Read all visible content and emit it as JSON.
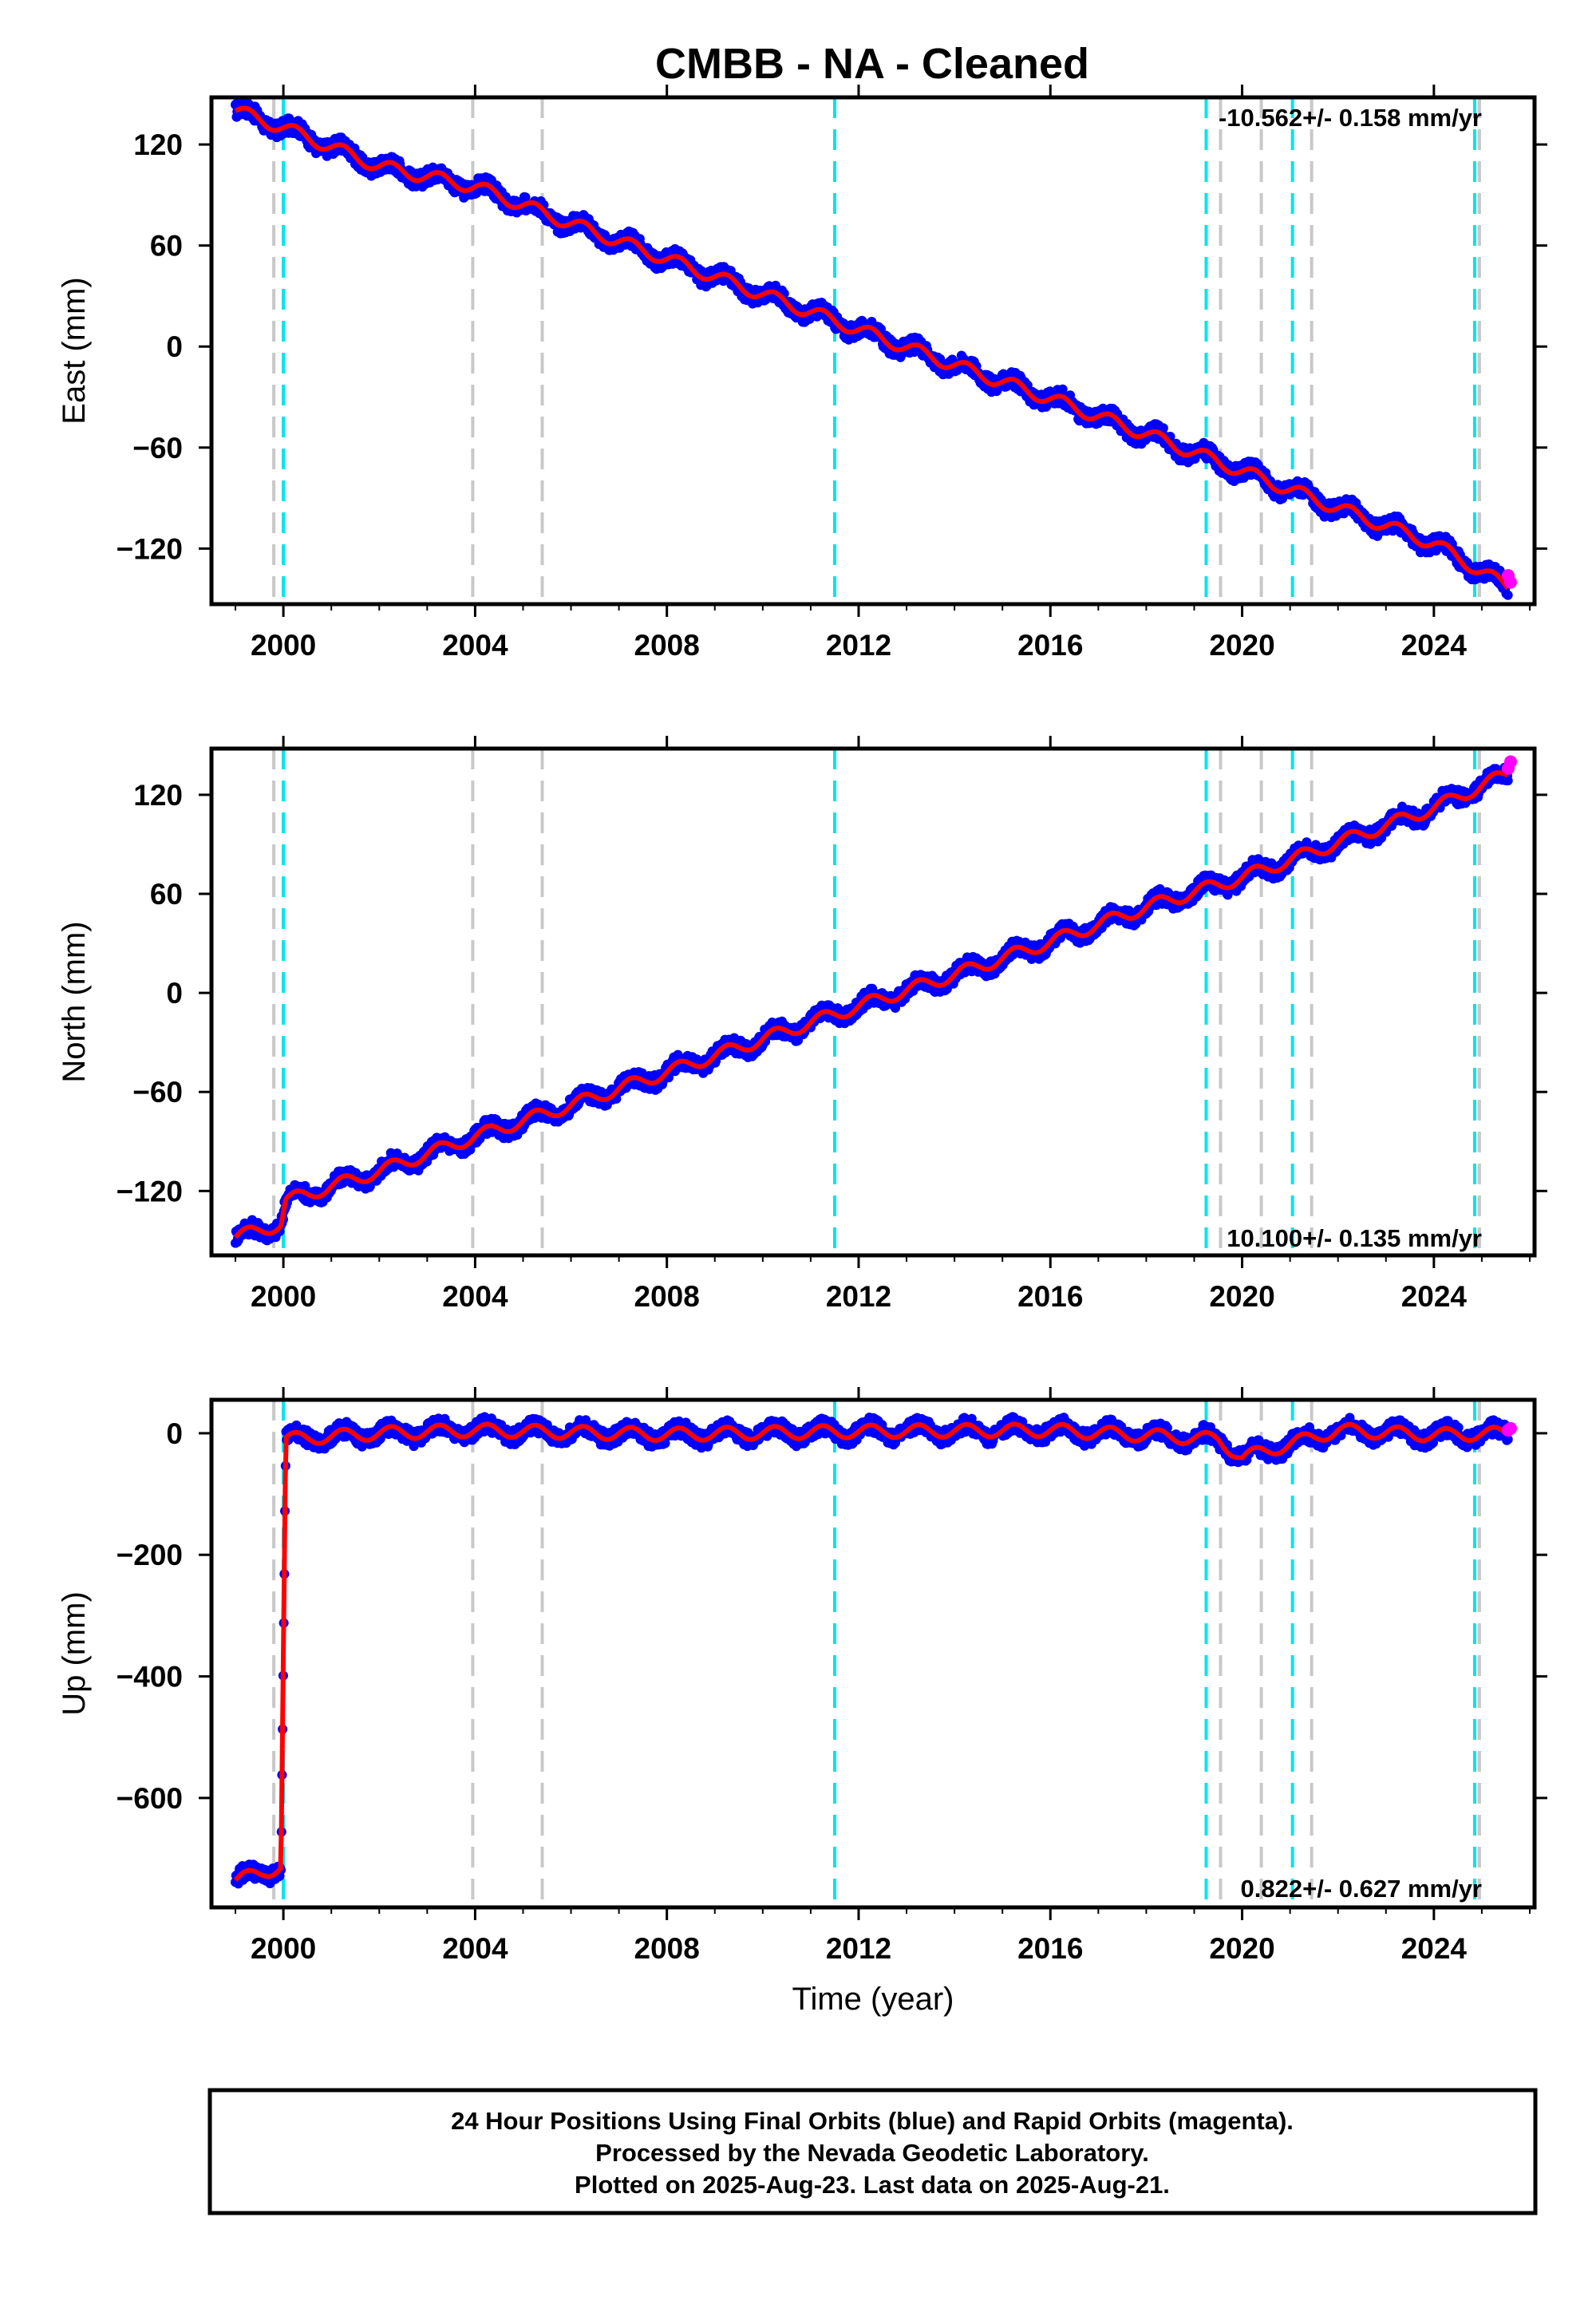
{
  "title": "CMBB  - NA - Cleaned",
  "colors": {
    "final_orbits": "#0000ff",
    "rapid_orbits": "#ff00ff",
    "model_fit": "#ff0000",
    "equipment_change": "#00e5ee",
    "earthquake": "#c8c8c8",
    "frame": "#000000"
  },
  "footer": {
    "line1": "24 Hour Positions Using Final Orbits (blue) and Rapid Orbits (magenta).",
    "line2": "Processed by the Nevada Geodetic Laboratory.",
    "line3": "Plotted on 2025-Aug-23. Last data on 2025-Aug-21."
  },
  "chart_data": [
    {
      "type": "scatter",
      "component": "east",
      "ylabel": "East (mm)",
      "xlabel": "",
      "xlim": [
        1998.5,
        2026.1
      ],
      "ylim": [
        -153,
        148
      ],
      "xticks": [
        "2000",
        "2004",
        "2008",
        "2012",
        "2016",
        "2020",
        "2024"
      ],
      "yticks": [
        "120",
        "60",
        "0",
        "−60",
        "−120"
      ],
      "rate": "-10.562+/- 0.158 mm/yr",
      "equipment_changes": [
        2000.0,
        2011.5,
        2019.25,
        2021.05,
        2024.85
      ],
      "earthquakes": [
        1999.8,
        2003.95,
        2005.4,
        2019.55,
        2020.4,
        2021.45,
        2024.95
      ],
      "series": [
        {
          "name": "Final Orbits",
          "x": [
            1999.0,
            2000.0,
            2002.0,
            2004.0,
            2006.0,
            2008.0,
            2010.0,
            2012.0,
            2014.0,
            2016.0,
            2018.0,
            2020.0,
            2022.0,
            2024.0,
            2025.55
          ],
          "values": [
            140,
            130,
            107,
            95,
            73,
            52,
            31,
            10,
            -11,
            -31,
            -52,
            -74,
            -96,
            -117,
            -143
          ]
        },
        {
          "name": "Rapid Orbits",
          "x": [
            2025.55,
            2025.6
          ],
          "values": [
            -136,
            -140
          ]
        }
      ]
    },
    {
      "type": "scatter",
      "component": "north",
      "ylabel": "North (mm)",
      "xlabel": "",
      "xlim": [
        1998.5,
        2026.1
      ],
      "ylim": [
        -159,
        148
      ],
      "xticks": [
        "2000",
        "2004",
        "2008",
        "2012",
        "2016",
        "2020",
        "2024"
      ],
      "yticks": [
        "120",
        "60",
        "0",
        "−60",
        "−120"
      ],
      "rate": "10.100+/- 0.135 mm/yr",
      "equipment_changes": [
        2000.0,
        2011.5,
        2019.25,
        2021.05,
        2024.85
      ],
      "earthquakes": [
        1999.8,
        2003.95,
        2005.4,
        2019.55,
        2020.4,
        2021.45,
        2024.95
      ],
      "series": [
        {
          "name": "Final Orbits",
          "x": [
            1999.0,
            1999.95,
            2000.05,
            2002.0,
            2004.0,
            2006.0,
            2008.0,
            2010.0,
            2012.0,
            2014.0,
            2016.0,
            2018.0,
            2020.0,
            2022.0,
            2024.0,
            2025.55
          ],
          "values": [
            -148,
            -140,
            -126,
            -108,
            -87,
            -68,
            -48,
            -28,
            -8,
            11,
            31,
            52,
            70,
            91,
            112,
            133
          ]
        },
        {
          "name": "Rapid Orbits",
          "x": [
            2025.55,
            2025.6
          ],
          "values": [
            136,
            140
          ]
        }
      ]
    },
    {
      "type": "scatter",
      "component": "up",
      "ylabel": "Up (mm)",
      "xlabel": "Time (year)",
      "xlim": [
        1998.5,
        2026.1
      ],
      "ylim": [
        -780,
        55
      ],
      "xticks": [
        "2000",
        "2004",
        "2008",
        "2012",
        "2016",
        "2020",
        "2024"
      ],
      "yticks": [
        "0",
        "−200",
        "−400",
        "−600"
      ],
      "rate": "0.822+/- 0.627 mm/yr",
      "equipment_changes": [
        2000.0,
        2011.5,
        2019.25,
        2021.05,
        2024.85
      ],
      "earthquakes": [
        1999.8,
        2003.95,
        2005.4,
        2019.55,
        2020.4,
        2021.45,
        2024.95
      ],
      "series": [
        {
          "name": "Final Orbits",
          "x": [
            1999.0,
            1999.5,
            1999.95,
            2000.05,
            2002.0,
            2004.0,
            2008.0,
            2012.0,
            2016.0,
            2019.5,
            2020.0,
            2022.0,
            2024.0,
            2025.55
          ],
          "values": [
            -735,
            -725,
            -712,
            -10,
            0,
            5,
            -2,
            3,
            5,
            -10,
            -40,
            5,
            -3,
            0
          ]
        },
        {
          "name": "Rapid Orbits",
          "x": [
            2025.55,
            2025.6
          ],
          "values": [
            5,
            8
          ]
        }
      ]
    }
  ]
}
